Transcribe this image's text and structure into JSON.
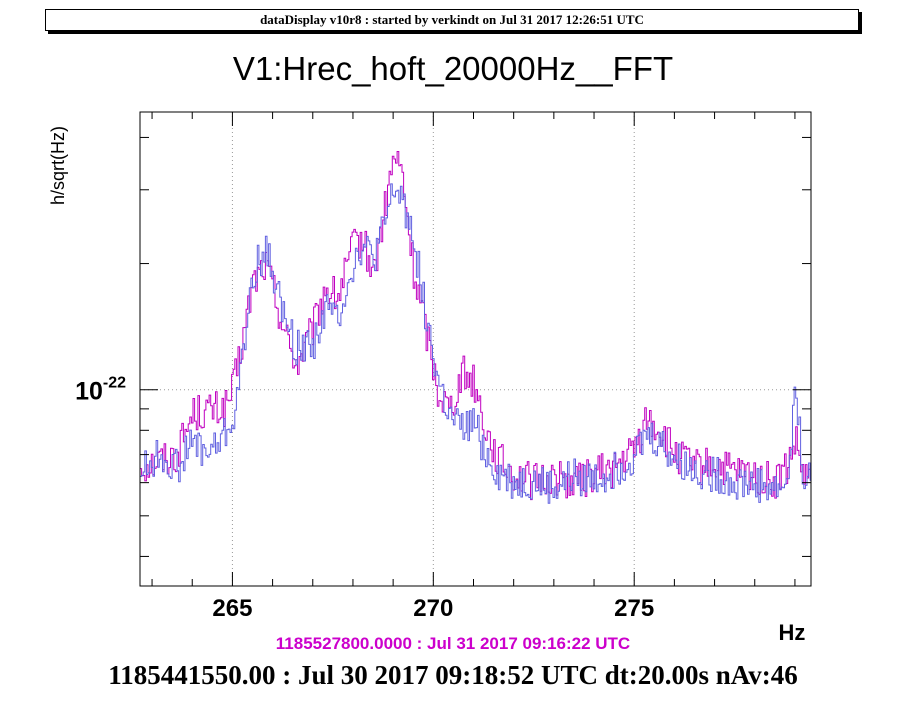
{
  "header": {
    "title": "dataDisplay v10r8 : started by verkindt on Jul 31 2017 12:26:51 UTC"
  },
  "plot": {
    "title": "V1:Hrec_hoft_20000Hz__FFT"
  },
  "footer": {
    "start_time": "1185527800.0000 : Jul 31 2017 09:16:22 UTC",
    "info": "1185441550.00 : Jul 30 2017 09:18:52 UTC dt:20.00s nAv:46"
  },
  "colors": {
    "series_current": "#c000c0",
    "series_reference": "#6060e0",
    "start_time_text": "#cc00cc"
  },
  "chart_data": {
    "type": "line",
    "title": "V1:Hrec_hoft_20000Hz__FFT",
    "xlabel": "Hz",
    "ylabel": "h/sqrt(Hz)",
    "xlim": [
      262.7,
      279.4
    ],
    "ylim": [
      3.4e-23,
      4.6e-22
    ],
    "yscale": "log",
    "grid": true,
    "x_ticks": [
      265,
      270,
      275
    ],
    "x_tick_labels": [
      "265",
      "270",
      "275"
    ],
    "y_ticks": [
      1e-22
    ],
    "y_tick_label_base": "10",
    "y_tick_label_exp": "-22",
    "series": [
      {
        "color": "#c000c0",
        "x": [
          262.8,
          263.2,
          263.6,
          264.0,
          264.4,
          264.8,
          265.0,
          265.2,
          265.5,
          265.8,
          266.0,
          266.3,
          266.6,
          267.0,
          267.3,
          267.6,
          268.0,
          268.2,
          268.5,
          268.8,
          269.0,
          269.2,
          269.5,
          269.8,
          270.1,
          270.4,
          270.7,
          271.0,
          271.3,
          271.6,
          272.0,
          272.5,
          273.0,
          273.5,
          274.0,
          274.5,
          275.0,
          275.3,
          275.6,
          276.0,
          276.5,
          277.0,
          277.5,
          278.0,
          278.5,
          278.8,
          279.0,
          279.2,
          279.4
        ],
        "y": [
          6.6e-23,
          6.8e-23,
          7e-23,
          8.8e-23,
          8.9e-23,
          9e-23,
          1e-22,
          1.25e-22,
          1.8e-22,
          2e-22,
          1.75e-22,
          1.35e-22,
          1.15e-22,
          1.4e-22,
          1.75e-22,
          1.65e-22,
          2.2e-22,
          2.3e-22,
          1.9e-22,
          2.75e-22,
          3.6e-22,
          3.3e-22,
          1.9e-22,
          1.4e-22,
          1e-22,
          9e-23,
          1.1e-22,
          1.05e-22,
          8e-23,
          6.8e-23,
          6.3e-23,
          6e-23,
          6.2e-23,
          6e-23,
          6.3e-23,
          6.5e-23,
          7.2e-23,
          8.5e-23,
          8e-23,
          7e-23,
          6.5e-23,
          6.6e-23,
          6.3e-23,
          6.2e-23,
          6e-23,
          6.5e-23,
          7.5e-23,
          6.2e-23,
          6e-23
        ]
      },
      {
        "color": "#6060e0",
        "x": [
          262.8,
          263.2,
          263.6,
          264.0,
          264.4,
          264.8,
          265.0,
          265.2,
          265.5,
          265.8,
          266.0,
          266.3,
          266.6,
          267.0,
          267.3,
          267.6,
          268.0,
          268.2,
          268.5,
          268.8,
          269.0,
          269.2,
          269.5,
          269.8,
          270.1,
          270.4,
          270.7,
          271.0,
          271.3,
          271.6,
          272.0,
          272.5,
          273.0,
          273.5,
          274.0,
          274.5,
          275.0,
          275.3,
          275.6,
          276.0,
          276.5,
          277.0,
          277.5,
          278.0,
          278.5,
          278.8,
          279.0,
          279.2,
          279.4
        ],
        "y": [
          6.5e-23,
          7e-23,
          6.5e-23,
          7.5e-23,
          7e-23,
          7.8e-23,
          8.5e-23,
          1.1e-22,
          1.9e-22,
          2.15e-22,
          1.9e-22,
          1.45e-22,
          1.25e-22,
          1.3e-22,
          1.55e-22,
          1.5e-22,
          2e-22,
          2.2e-22,
          2.05e-22,
          2.5e-22,
          3e-22,
          2.9e-22,
          2.3e-22,
          1.5e-22,
          1.05e-22,
          8.5e-23,
          8e-23,
          8.3e-23,
          7e-23,
          6.3e-23,
          6e-23,
          6e-23,
          5.8e-23,
          6.2e-23,
          6.1e-23,
          6.4e-23,
          7e-23,
          7.8e-23,
          7.5e-23,
          6.8e-23,
          6.4e-23,
          6.3e-23,
          6e-23,
          6e-23,
          5.8e-23,
          6e-23,
          1e-22,
          6.3e-23,
          6e-23
        ]
      }
    ]
  }
}
